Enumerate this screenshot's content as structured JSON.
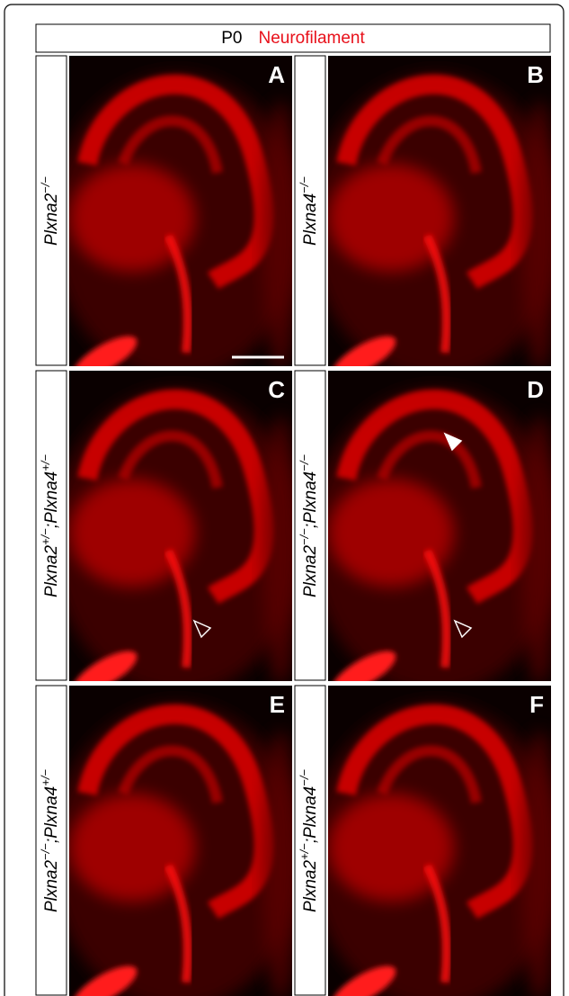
{
  "header": {
    "stage": "P0",
    "stain": "Neurofilament"
  },
  "panels": [
    {
      "letter": "A",
      "genotype": [
        {
          "text": "Plxna2",
          "sup": "−/−"
        }
      ]
    },
    {
      "letter": "B",
      "genotype": [
        {
          "text": "Plxna4",
          "sup": "−/−"
        }
      ]
    },
    {
      "letter": "C",
      "genotype": [
        {
          "text": "Plxna2",
          "sup": "+/−"
        },
        {
          "text": ";Plxna4",
          "sup": "+/−"
        }
      ]
    },
    {
      "letter": "D",
      "genotype": [
        {
          "text": "Plxna2",
          "sup": "−/−"
        },
        {
          "text": ";Plxna4",
          "sup": "−/−"
        }
      ]
    },
    {
      "letter": "E",
      "genotype": [
        {
          "text": "Plxna2",
          "sup": "−/−"
        },
        {
          "text": ";Plxna4",
          "sup": "+/−"
        }
      ]
    },
    {
      "letter": "F",
      "genotype": [
        {
          "text": "Plxna2",
          "sup": "+/−"
        },
        {
          "text": ";Plxna4",
          "sup": "−/−"
        }
      ]
    }
  ]
}
